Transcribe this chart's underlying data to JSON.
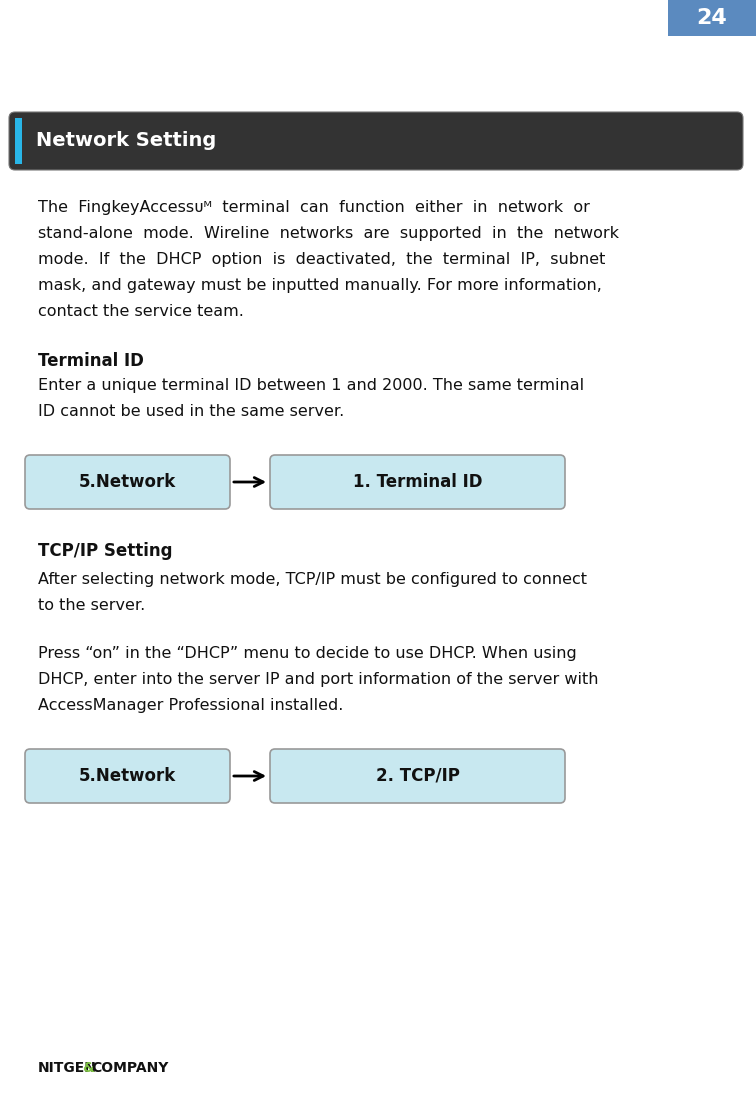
{
  "page_number": "24",
  "page_number_bg": "#5b8abf",
  "page_number_color": "#ffffff",
  "section_title": "Network Setting",
  "section_title_bg": "#333333",
  "section_title_color": "#ffffff",
  "section_accent_color": "#29b6e8",
  "body_lines_1": [
    "The  FingkeyAccessᴜᴹ  terminal  can  function  either  in  network  or",
    "stand-alone  mode.  Wireline  networks  are  supported  in  the  network",
    "mode.  If  the  DHCP  option  is  deactivated,  the  terminal  IP,  subnet",
    "mask, and gateway must be inputted manually. For more information,",
    "contact the service team."
  ],
  "subsection1_title": "Terminal ID",
  "subsection1_lines": [
    "Enter a unique terminal ID between 1 and 2000. The same terminal",
    "ID cannot be used in the same server."
  ],
  "box1_left_label": "5.Network",
  "box1_right_label": "1. Terminal ID",
  "subsection2_title": "TCP/IP Setting",
  "subsection2_lines1": [
    "After selecting network mode, TCP/IP must be configured to connect",
    "to the server."
  ],
  "subsection2_lines2": [
    "Press “on” in the “DHCP” menu to decide to use DHCP. When using",
    "DHCP, enter into the server IP and port information of the server with",
    "AccessManager Professional installed."
  ],
  "box2_left_label": "5.Network",
  "box2_right_label": "2. TCP/IP",
  "box_fill_color": "#c8e8f0",
  "box_edge_color": "#999999",
  "footer_nitgen": "NITGEN",
  "footer_amp": "&",
  "footer_company": "COMPANY",
  "footer_amp_color": "#7dc143",
  "footer_text_color": "#111111",
  "bg_color": "#ffffff"
}
